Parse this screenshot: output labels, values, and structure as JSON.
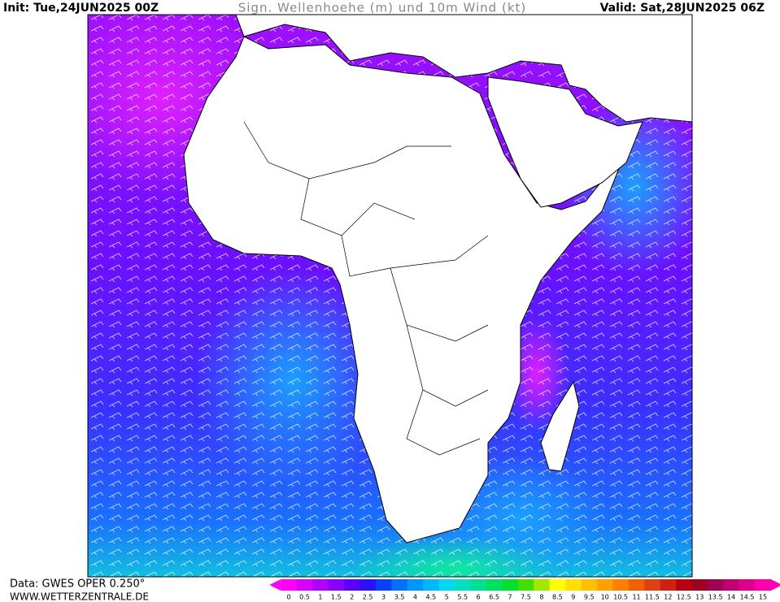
{
  "header": {
    "init": "Init: Tue,24JUN2025 00Z",
    "title": "Sign. Wellenhoehe (m) und 10m Wind (kt)",
    "valid": "Valid: Sat,28JUN2025 06Z"
  },
  "footer": {
    "source": "Data: GWES OPER 0.250°",
    "website": "WWW.WETTERZENTRALE.DE"
  },
  "colorbar": {
    "ticks": [
      0,
      0.5,
      1,
      1.5,
      2,
      2.5,
      3,
      3.5,
      4,
      4.5,
      5,
      5.5,
      6,
      6.5,
      7,
      7.5,
      8,
      8.5,
      9,
      9.5,
      10,
      10.5,
      11,
      11.5,
      12,
      12.5,
      13,
      13.5,
      14,
      14.5,
      15
    ],
    "colors": [
      "#ff00ff",
      "#d800ff",
      "#b000ff",
      "#8800ff",
      "#5a00ff",
      "#2a10ff",
      "#0a40ff",
      "#0070ff",
      "#0096ff",
      "#00b8ff",
      "#00d8f0",
      "#00e0c0",
      "#00e090",
      "#00e060",
      "#00e030",
      "#40e000",
      "#a0e800",
      "#ffff00",
      "#ffe000",
      "#ffc000",
      "#ffa000",
      "#ff8000",
      "#f06000",
      "#e04010",
      "#d02010",
      "#b80010",
      "#a00020",
      "#a00050",
      "#c00070",
      "#e00090",
      "#ff00b0"
    ]
  }
}
